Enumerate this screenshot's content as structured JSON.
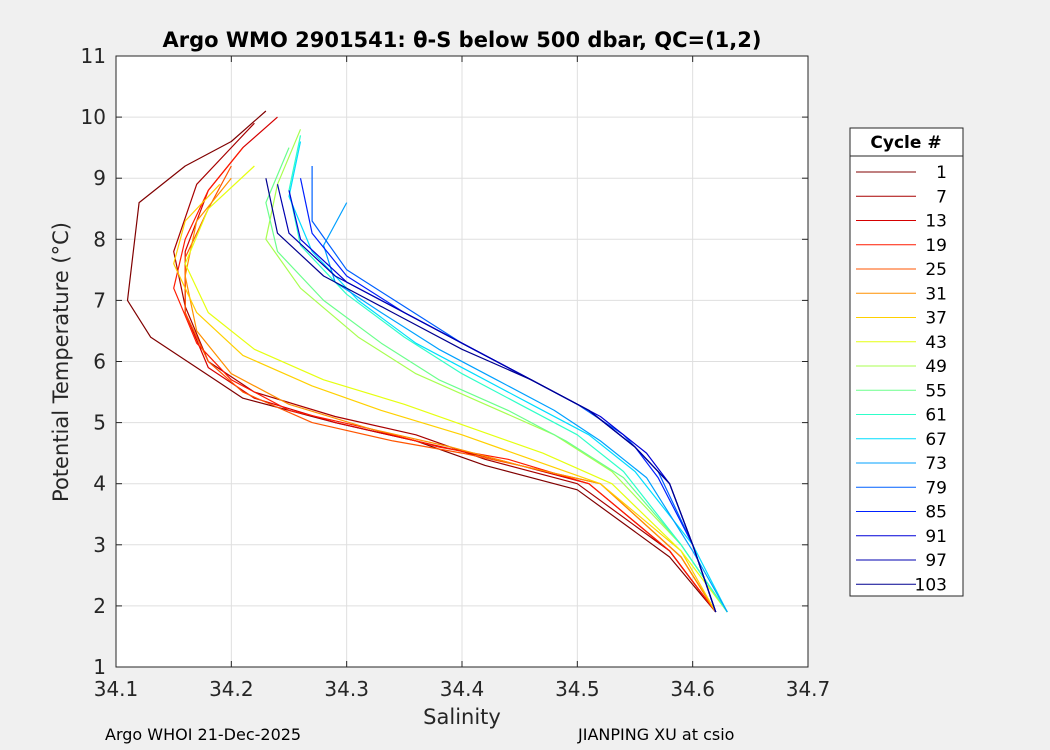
{
  "chart_data": {
    "type": "line",
    "title": "Argo WMO 2901541: θ-S below 500 dbar,  QC=(1,2)",
    "xlabel": "Salinity",
    "ylabel": "Potential Temperature (°C)",
    "xlim": [
      34.1,
      34.7
    ],
    "ylim": [
      1,
      11
    ],
    "xticks": [
      "34.1",
      "34.2",
      "34.3",
      "34.4",
      "34.5",
      "34.6",
      "34.7"
    ],
    "yticks": [
      "1",
      "2",
      "3",
      "4",
      "5",
      "6",
      "7",
      "8",
      "9",
      "10",
      "11"
    ],
    "grid": true,
    "legend_title": "Cycle #",
    "legend_position": "right",
    "legend": [
      {
        "label": "1",
        "color": "#800000"
      },
      {
        "label": "7",
        "color": "#a80000"
      },
      {
        "label": "13",
        "color": "#d50000"
      },
      {
        "label": "19",
        "color": "#ff1a00"
      },
      {
        "label": "25",
        "color": "#ff5500"
      },
      {
        "label": "31",
        "color": "#ff9000"
      },
      {
        "label": "37",
        "color": "#ffd000"
      },
      {
        "label": "43",
        "color": "#e6ff10"
      },
      {
        "label": "49",
        "color": "#a8ff4f"
      },
      {
        "label": "55",
        "color": "#6bff8c"
      },
      {
        "label": "61",
        "color": "#2effc9"
      },
      {
        "label": "67",
        "color": "#00ddff"
      },
      {
        "label": "73",
        "color": "#00a0ff"
      },
      {
        "label": "79",
        "color": "#0060ff"
      },
      {
        "label": "85",
        "color": "#0020ff"
      },
      {
        "label": "91",
        "color": "#0000d8"
      },
      {
        "label": "97",
        "color": "#0000b0"
      },
      {
        "label": "103",
        "color": "#000090"
      }
    ],
    "series": [
      {
        "name": "1",
        "color": "#800000",
        "x": [
          34.23,
          34.2,
          34.16,
          34.12,
          34.11,
          34.13,
          34.17,
          34.21,
          34.29,
          34.36,
          34.42,
          34.5,
          34.58,
          34.62
        ],
        "y": [
          10.1,
          9.6,
          9.2,
          8.6,
          7.0,
          6.4,
          5.9,
          5.4,
          5.0,
          4.7,
          4.3,
          3.9,
          2.8,
          1.9
        ]
      },
      {
        "name": "7",
        "color": "#a80000",
        "x": [
          34.22,
          34.2,
          34.17,
          34.15,
          34.16,
          34.18,
          34.22,
          34.29,
          34.36,
          34.42,
          34.5,
          34.58,
          34.62
        ],
        "y": [
          9.9,
          9.5,
          8.9,
          7.8,
          6.9,
          6.0,
          5.5,
          5.1,
          4.8,
          4.4,
          4.0,
          2.9,
          1.9
        ]
      },
      {
        "name": "13",
        "color": "#d50000",
        "x": [
          34.24,
          34.21,
          34.18,
          34.16,
          34.16,
          34.18,
          34.22,
          34.29,
          34.36,
          34.43,
          34.51,
          34.58,
          34.62
        ],
        "y": [
          10.0,
          9.5,
          8.8,
          7.8,
          6.8,
          5.9,
          5.4,
          5.0,
          4.7,
          4.4,
          4.0,
          2.9,
          1.9
        ]
      },
      {
        "name": "19",
        "color": "#ff1a00",
        "x": [
          34.21,
          34.18,
          34.16,
          34.15,
          34.17,
          34.2,
          34.25,
          34.32,
          34.38,
          34.44,
          34.51,
          34.58,
          34.62
        ],
        "y": [
          9.5,
          8.8,
          8.0,
          7.2,
          6.3,
          5.7,
          5.2,
          4.9,
          4.6,
          4.4,
          4.0,
          2.9,
          1.9
        ]
      },
      {
        "name": "25",
        "color": "#ff5500",
        "x": [
          34.2,
          34.18,
          34.16,
          34.16,
          34.18,
          34.21,
          34.27,
          34.34,
          34.4,
          34.45,
          34.52,
          34.59,
          34.62
        ],
        "y": [
          9.2,
          8.5,
          7.7,
          6.8,
          6.0,
          5.5,
          5.0,
          4.7,
          4.5,
          4.3,
          4.0,
          2.8,
          1.9
        ]
      },
      {
        "name": "31",
        "color": "#ff9000",
        "x": [
          34.2,
          34.17,
          34.16,
          34.17,
          34.2,
          34.25,
          34.32,
          34.39,
          34.45,
          34.52,
          34.59,
          34.62
        ],
        "y": [
          9.0,
          8.3,
          7.4,
          6.5,
          5.8,
          5.3,
          4.9,
          4.6,
          4.3,
          4.0,
          2.8,
          1.9
        ]
      },
      {
        "name": "37",
        "color": "#ffd000",
        "x": [
          34.19,
          34.16,
          34.15,
          34.17,
          34.21,
          34.27,
          34.33,
          34.4,
          34.46,
          34.52,
          34.59,
          34.62
        ],
        "y": [
          8.9,
          8.3,
          7.6,
          6.8,
          6.1,
          5.6,
          5.2,
          4.8,
          4.4,
          4.0,
          2.9,
          1.9
        ]
      },
      {
        "name": "43",
        "color": "#e6ff10",
        "x": [
          34.22,
          34.18,
          34.16,
          34.18,
          34.22,
          34.28,
          34.35,
          34.41,
          34.47,
          34.53,
          34.59,
          34.63
        ],
        "y": [
          9.2,
          8.5,
          7.6,
          6.8,
          6.2,
          5.7,
          5.3,
          4.9,
          4.5,
          4.0,
          2.9,
          1.9
        ]
      },
      {
        "name": "49",
        "color": "#a8ff4f",
        "x": [
          34.26,
          34.24,
          34.23,
          34.26,
          34.31,
          34.36,
          34.42,
          34.48,
          34.53,
          34.59,
          34.63
        ],
        "y": [
          9.8,
          8.9,
          8.0,
          7.2,
          6.4,
          5.8,
          5.3,
          4.8,
          4.2,
          3.0,
          1.9
        ]
      },
      {
        "name": "55",
        "color": "#6bff8c",
        "x": [
          34.25,
          34.23,
          34.24,
          34.28,
          34.33,
          34.38,
          34.44,
          34.49,
          34.54,
          34.59,
          34.63
        ],
        "y": [
          9.5,
          8.6,
          7.8,
          7.0,
          6.3,
          5.7,
          5.2,
          4.7,
          4.1,
          3.0,
          1.9
        ]
      },
      {
        "name": "61",
        "color": "#2effc9",
        "x": [
          34.26,
          34.25,
          34.26,
          34.3,
          34.35,
          34.4,
          34.45,
          34.5,
          34.54,
          34.59,
          34.63
        ],
        "y": [
          9.7,
          8.8,
          7.9,
          7.1,
          6.4,
          5.8,
          5.3,
          4.8,
          4.2,
          3.0,
          1.9
        ]
      },
      {
        "name": "67",
        "color": "#00ddff",
        "x": [
          34.26,
          34.25,
          34.27,
          34.31,
          34.36,
          34.41,
          34.46,
          34.51,
          34.55,
          34.6,
          34.63
        ],
        "y": [
          9.6,
          8.7,
          7.8,
          7.0,
          6.3,
          5.8,
          5.3,
          4.8,
          4.2,
          3.0,
          1.9
        ]
      },
      {
        "name": "73",
        "color": "#00a0ff",
        "x": [
          34.3,
          34.28,
          34.29,
          34.33,
          34.38,
          34.43,
          34.48,
          34.52,
          34.56,
          34.6,
          34.63
        ],
        "y": [
          8.6,
          7.9,
          7.3,
          6.8,
          6.2,
          5.7,
          5.2,
          4.7,
          4.1,
          2.9,
          1.9
        ]
      },
      {
        "name": "79",
        "color": "#0060ff",
        "x": [
          34.27,
          34.27,
          34.3,
          34.35,
          34.4,
          34.45,
          34.5,
          34.54,
          34.57,
          34.6,
          34.62
        ],
        "y": [
          9.2,
          8.3,
          7.5,
          6.9,
          6.3,
          5.8,
          5.3,
          4.8,
          4.2,
          3.0,
          1.9
        ]
      },
      {
        "name": "85",
        "color": "#0020ff",
        "x": [
          34.26,
          34.27,
          34.3,
          34.35,
          34.41,
          34.46,
          34.51,
          34.55,
          34.57,
          34.6,
          34.62
        ],
        "y": [
          9.0,
          8.1,
          7.4,
          6.8,
          6.2,
          5.7,
          5.2,
          4.6,
          4.1,
          3.0,
          1.9
        ]
      },
      {
        "name": "91",
        "color": "#0000d8",
        "x": [
          34.25,
          34.26,
          34.3,
          34.36,
          34.42,
          34.47,
          34.52,
          34.56,
          34.58,
          34.6,
          34.62
        ],
        "y": [
          8.8,
          8.0,
          7.3,
          6.7,
          6.1,
          5.6,
          5.1,
          4.5,
          4.0,
          3.0,
          1.9
        ]
      },
      {
        "name": "97",
        "color": "#0000b0",
        "x": [
          34.24,
          34.25,
          34.29,
          34.35,
          34.41,
          34.46,
          34.51,
          34.55,
          34.58,
          34.6,
          34.62
        ],
        "y": [
          8.9,
          8.1,
          7.4,
          6.8,
          6.2,
          5.7,
          5.2,
          4.6,
          4.0,
          3.0,
          1.9
        ]
      },
      {
        "name": "103",
        "color": "#000090",
        "x": [
          34.23,
          34.24,
          34.28,
          34.34,
          34.4,
          34.46,
          34.51,
          34.55,
          34.58,
          34.6,
          34.62
        ],
        "y": [
          9.0,
          8.1,
          7.4,
          6.8,
          6.2,
          5.7,
          5.2,
          4.6,
          4.0,
          3.0,
          1.9
        ]
      }
    ]
  },
  "footer": {
    "left": "Argo WHOI 21-Dec-2025",
    "right": "JIANPING XU at csio"
  }
}
